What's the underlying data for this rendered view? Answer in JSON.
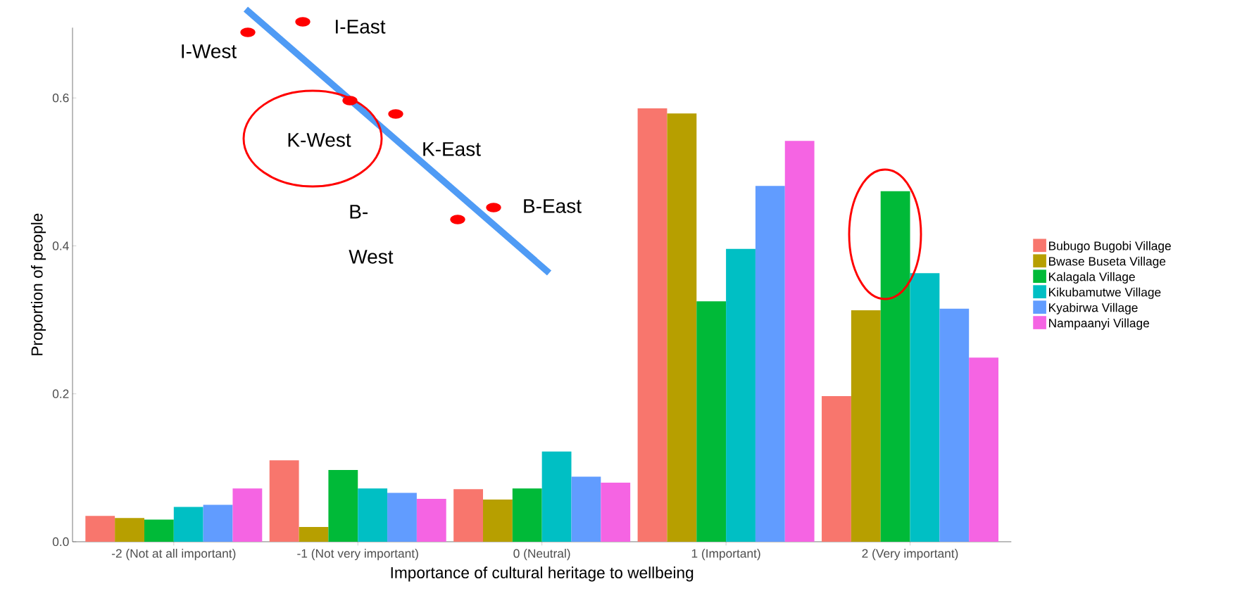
{
  "chart_data": {
    "type": "bar",
    "xlabel": "Importance of cultural heritage to wellbeing",
    "ylabel": "Proportion of people",
    "categories": [
      "-2 (Not at all important)",
      "-1 (Not very important)",
      "0 (Neutral)",
      "1 (Important)",
      "2 (Very important)"
    ],
    "series": [
      {
        "name": "Bubugo Bugobi Village",
        "color": "#f8766d",
        "values": [
          0.035,
          0.11,
          0.071,
          0.586,
          0.197
        ]
      },
      {
        "name": "Bwase Buseta Village",
        "color": "#b79f00",
        "values": [
          0.032,
          0.02,
          0.057,
          0.579,
          0.313
        ]
      },
      {
        "name": "Kalagala Village",
        "color": "#00ba38",
        "values": [
          0.03,
          0.097,
          0.072,
          0.325,
          0.474
        ]
      },
      {
        "name": "Kikubamutwe Village",
        "color": "#00bfc4",
        "values": [
          0.047,
          0.072,
          0.122,
          0.396,
          0.363
        ]
      },
      {
        "name": "Kyabirwa Village",
        "color": "#619cff",
        "values": [
          0.05,
          0.066,
          0.088,
          0.481,
          0.315
        ]
      },
      {
        "name": "Nampaanyi Village",
        "color": "#f564e3",
        "values": [
          0.072,
          0.058,
          0.08,
          0.542,
          0.249
        ]
      }
    ],
    "ylim": [
      0,
      0.695
    ],
    "yticks": [
      {
        "value": 0,
        "label": "0.0"
      },
      {
        "value": 0.2,
        "label": "0.2"
      },
      {
        "value": 0.4,
        "label": "0.4"
      },
      {
        "value": 0.6,
        "label": "0.6"
      }
    ],
    "legend": "right",
    "annotations": [
      "I-West",
      "I-East",
      "K-West",
      "K-East",
      "B-East",
      "B-West"
    ]
  }
}
